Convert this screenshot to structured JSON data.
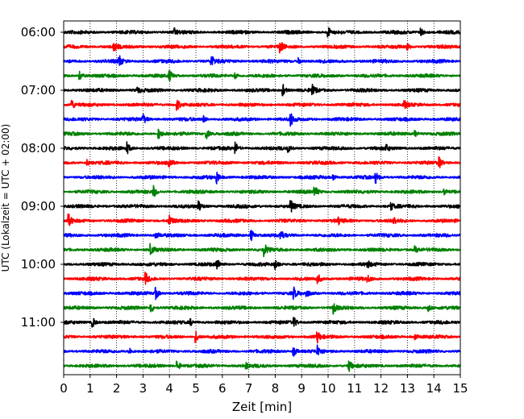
{
  "chart_data": {
    "type": "line",
    "title": "",
    "xlabel": "Zeit  [min]",
    "ylabel": "UTC (Lokalzeit = UTC + 02:00)",
    "xlim": [
      0,
      15
    ],
    "xticks": [
      "0",
      "1",
      "2",
      "3",
      "4",
      "5",
      "6",
      "7",
      "8",
      "9",
      "10",
      "11",
      "12",
      "13",
      "14",
      "15"
    ],
    "yticks": [
      "06:00",
      "07:00",
      "08:00",
      "09:00",
      "10:00",
      "11:00"
    ],
    "grid_x": true,
    "trace_interval_min": 15,
    "trace_colors": [
      "#000000",
      "#ff0000",
      "#0000ff",
      "#008000"
    ],
    "traces": [
      {
        "start": "06:00",
        "color": "#000000",
        "events": [
          10.0,
          13.5,
          4.2
        ]
      },
      {
        "start": "06:15",
        "color": "#ff0000",
        "events": [
          1.9,
          8.2,
          13.0
        ]
      },
      {
        "start": "06:30",
        "color": "#0000ff",
        "events": [
          2.1,
          5.6,
          8.9
        ]
      },
      {
        "start": "06:45",
        "color": "#008000",
        "events": [
          4.0,
          0.6,
          6.5
        ]
      },
      {
        "start": "07:00",
        "color": "#000000",
        "events": [
          8.3,
          9.4,
          2.8
        ]
      },
      {
        "start": "07:15",
        "color": "#ff0000",
        "events": [
          0.3,
          4.3,
          12.9
        ]
      },
      {
        "start": "07:30",
        "color": "#0000ff",
        "events": [
          8.6,
          3.0,
          5.3
        ]
      },
      {
        "start": "07:45",
        "color": "#008000",
        "events": [
          3.6,
          5.4,
          13.3
        ]
      },
      {
        "start": "08:00",
        "color": "#000000",
        "events": [
          2.4,
          6.5,
          8.5,
          12.2
        ]
      },
      {
        "start": "08:15",
        "color": "#ff0000",
        "events": [
          4.0,
          14.2,
          0.9
        ]
      },
      {
        "start": "08:30",
        "color": "#0000ff",
        "events": [
          5.8,
          11.8,
          10.2
        ]
      },
      {
        "start": "08:45",
        "color": "#008000",
        "events": [
          3.4,
          9.5,
          14.4
        ]
      },
      {
        "start": "09:00",
        "color": "#000000",
        "events": [
          5.1,
          8.6,
          12.4
        ]
      },
      {
        "start": "09:15",
        "color": "#ff0000",
        "events": [
          0.2,
          4.0,
          10.4,
          12.5
        ]
      },
      {
        "start": "09:30",
        "color": "#0000ff",
        "events": [
          7.1,
          8.2,
          3.5
        ]
      },
      {
        "start": "09:45",
        "color": "#008000",
        "events": [
          3.3,
          7.6,
          13.3
        ]
      },
      {
        "start": "10:00",
        "color": "#000000",
        "events": [
          5.8,
          8.0,
          11.5
        ]
      },
      {
        "start": "10:15",
        "color": "#ff0000",
        "events": [
          3.1,
          9.6,
          11.5
        ]
      },
      {
        "start": "10:30",
        "color": "#0000ff",
        "events": [
          3.5,
          8.7,
          9.2
        ]
      },
      {
        "start": "10:45",
        "color": "#008000",
        "events": [
          3.3,
          10.2,
          13.8
        ]
      },
      {
        "start": "11:00",
        "color": "#000000",
        "events": [
          8.7,
          1.1,
          4.8
        ]
      },
      {
        "start": "11:15",
        "color": "#ff0000",
        "events": [
          5.0,
          9.6,
          13.3
        ]
      },
      {
        "start": "11:30",
        "color": "#0000ff",
        "events": [
          8.7,
          9.6,
          2.5
        ]
      },
      {
        "start": "11:45",
        "color": "#008000",
        "events": [
          4.3,
          10.8,
          6.9
        ]
      }
    ]
  }
}
